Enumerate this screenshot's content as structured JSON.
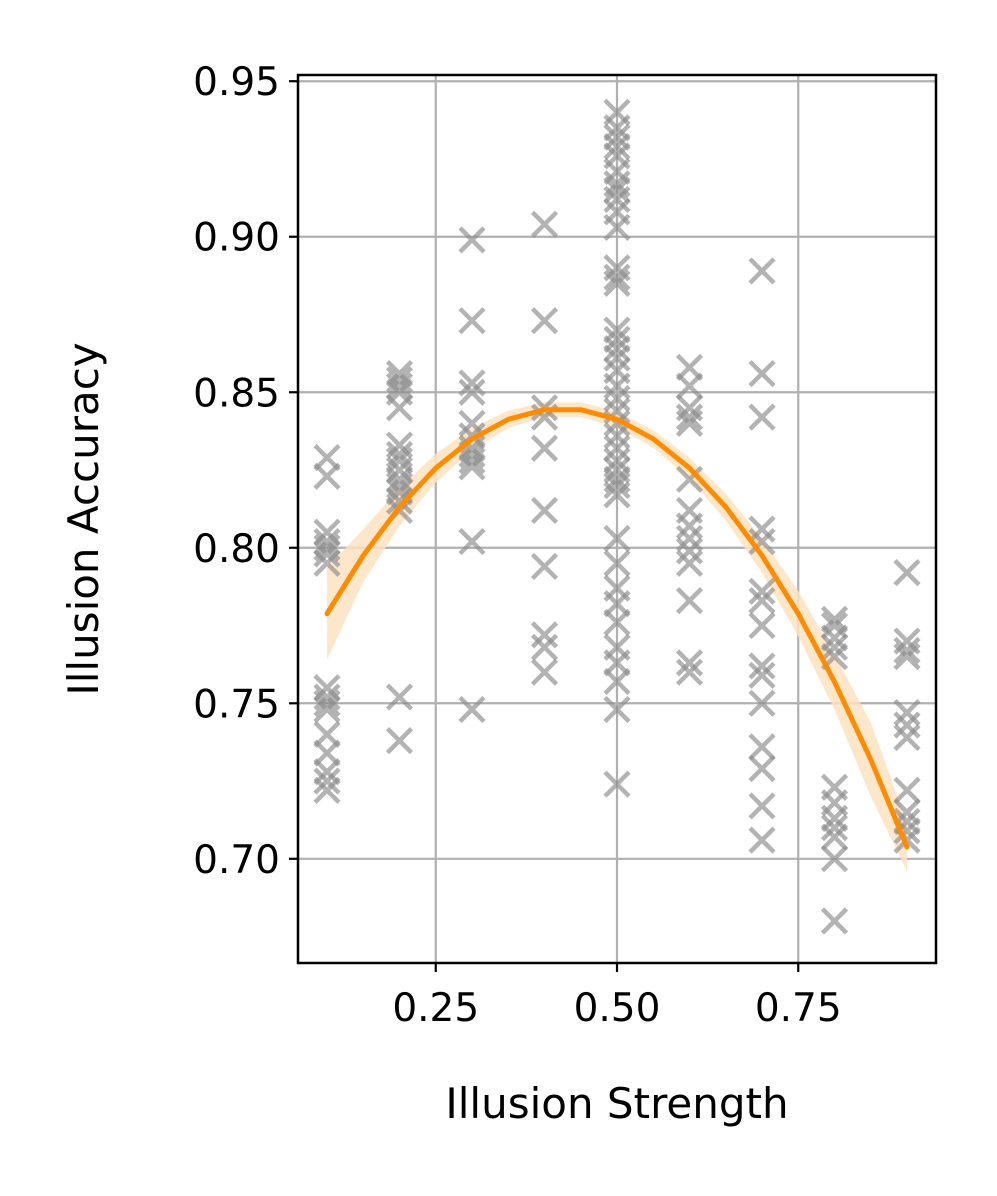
{
  "chart_data": {
    "type": "scatter",
    "title": "",
    "xlabel": "Illusion Strength",
    "ylabel": "Illusion Accuracy",
    "xlim": [
      0.06,
      0.94
    ],
    "ylim": [
      0.6665,
      0.952
    ],
    "xticks": [
      {
        "value": 0.25,
        "label": "0.25"
      },
      {
        "value": 0.5,
        "label": "0.50"
      },
      {
        "value": 0.75,
        "label": "0.75"
      }
    ],
    "yticks": [
      {
        "value": 0.7,
        "label": "0.70"
      },
      {
        "value": 0.75,
        "label": "0.75"
      },
      {
        "value": 0.8,
        "label": "0.80"
      },
      {
        "value": 0.85,
        "label": "0.85"
      },
      {
        "value": 0.9,
        "label": "0.90"
      },
      {
        "value": 0.95,
        "label": "0.95"
      }
    ],
    "grid": true,
    "marker_color": "#8c8c8c",
    "fit_color": "#ff8c00",
    "band_color": "#fde3c2",
    "points": {
      "0.1": [
        0.829,
        0.823,
        0.805,
        0.802,
        0.8,
        0.798,
        0.795,
        0.755,
        0.752,
        0.75,
        0.748,
        0.74,
        0.734,
        0.728,
        0.725,
        0.722
      ],
      "0.2": [
        0.856,
        0.854,
        0.852,
        0.85,
        0.845,
        0.833,
        0.83,
        0.828,
        0.825,
        0.822,
        0.82,
        0.818,
        0.815,
        0.812,
        0.752,
        0.738
      ],
      "0.3": [
        0.899,
        0.873,
        0.853,
        0.85,
        0.84,
        0.836,
        0.832,
        0.83,
        0.828,
        0.826,
        0.802,
        0.748
      ],
      "0.4": [
        0.904,
        0.873,
        0.845,
        0.842,
        0.832,
        0.812,
        0.794,
        0.772,
        0.768,
        0.76
      ],
      "0.5": [
        0.94,
        0.935,
        0.932,
        0.929,
        0.926,
        0.921,
        0.917,
        0.915,
        0.912,
        0.908,
        0.903,
        0.89,
        0.887,
        0.885,
        0.87,
        0.867,
        0.864,
        0.861,
        0.857,
        0.852,
        0.848,
        0.844,
        0.84,
        0.836,
        0.832,
        0.828,
        0.825,
        0.822,
        0.82,
        0.817,
        0.803,
        0.795,
        0.787,
        0.782,
        0.776,
        0.768,
        0.763,
        0.757,
        0.748,
        0.724
      ],
      "0.6": [
        0.858,
        0.852,
        0.845,
        0.842,
        0.84,
        0.822,
        0.812,
        0.807,
        0.803,
        0.799,
        0.795,
        0.783,
        0.763,
        0.76
      ],
      "0.7": [
        0.889,
        0.856,
        0.842,
        0.806,
        0.802,
        0.786,
        0.783,
        0.775,
        0.762,
        0.759,
        0.75,
        0.736,
        0.729,
        0.717,
        0.706
      ],
      "0.8": [
        0.777,
        0.775,
        0.771,
        0.768,
        0.765,
        0.723,
        0.718,
        0.713,
        0.71,
        0.707,
        0.7,
        0.68
      ],
      "0.9": [
        0.792,
        0.77,
        0.767,
        0.765,
        0.747,
        0.743,
        0.739,
        0.722,
        0.715,
        0.712,
        0.709,
        0.706
      ]
    },
    "fit": {
      "x": [
        0.1,
        0.15,
        0.2,
        0.25,
        0.3,
        0.35,
        0.4,
        0.45,
        0.5,
        0.55,
        0.6,
        0.65,
        0.7,
        0.75,
        0.8,
        0.85,
        0.9
      ],
      "y": [
        0.7788,
        0.7975,
        0.8131,
        0.8256,
        0.835,
        0.8413,
        0.8444,
        0.8444,
        0.8413,
        0.835,
        0.8256,
        0.8131,
        0.7975,
        0.7788,
        0.7569,
        0.7319,
        0.7038
      ],
      "lower": [
        0.764,
        0.789,
        0.807,
        0.821,
        0.8315,
        0.8385,
        0.842,
        0.842,
        0.8388,
        0.8322,
        0.8222,
        0.8088,
        0.792,
        0.7715,
        0.748,
        0.72,
        0.696
      ],
      "upper": [
        0.7936,
        0.806,
        0.8192,
        0.8302,
        0.8385,
        0.8441,
        0.8468,
        0.8468,
        0.8438,
        0.8378,
        0.829,
        0.8174,
        0.803,
        0.7861,
        0.7658,
        0.7438,
        0.7116
      ]
    }
  }
}
